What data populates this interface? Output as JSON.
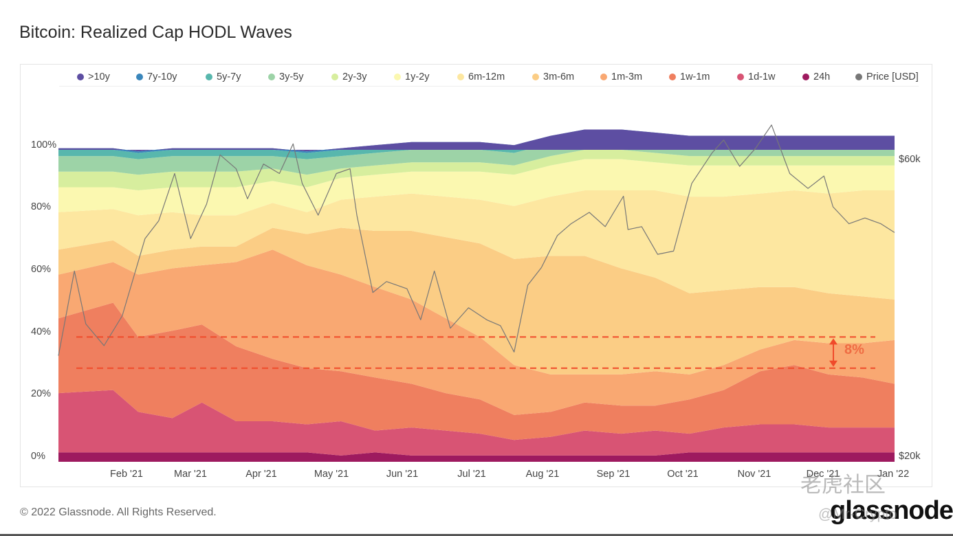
{
  "title": "Bitcoin: Realized Cap HODL Waves",
  "footer": "© 2022 Glassnode. All Rights Reserved.",
  "brand": "glassnode",
  "watermark_main": "老虎社区",
  "watermark_user": "@Mr-Crypto",
  "watermark_ghost": "glassnode",
  "annotation_label": "8%",
  "colors": {
    ">10y": "#5d4ea2",
    "7y-10y": "#3a86bb",
    "5y-7y": "#58b7ad",
    "3y-5y": "#9dd3a7",
    "2y-3y": "#d7ee9e",
    "1y-2y": "#fbf8b0",
    "6m-12m": "#fde7a0",
    "3m-6m": "#fbcd85",
    "1m-3m": "#f9a872",
    "1w-1m": "#ef7f5f",
    "1d-1w": "#d85474",
    "24h": "#9e1a5f",
    "price": "#777777",
    "annotation": "#f04a2a"
  },
  "chart_data": {
    "type": "area",
    "stacked": true,
    "title": "Bitcoin: Realized Cap HODL Waves",
    "x": [
      "2021-01-13",
      "2021-01-25",
      "2021-02-05",
      "2021-02-20",
      "2021-03-05",
      "2021-03-20",
      "2021-04-05",
      "2021-04-20",
      "2021-05-05",
      "2021-05-20",
      "2021-06-05",
      "2021-06-20",
      "2021-07-05",
      "2021-07-20",
      "2021-08-05",
      "2021-08-20",
      "2021-09-05",
      "2021-09-20",
      "2021-10-05",
      "2021-10-20",
      "2021-11-05",
      "2021-11-20",
      "2021-12-05",
      "2021-12-20",
      "2022-01-03"
    ],
    "x_tick_labels": [
      "Feb '21",
      "Mar '21",
      "Apr '21",
      "May '21",
      "Jun '21",
      "Jul '21",
      "Aug '21",
      "Sep '21",
      "Oct '21",
      "Nov '21",
      "Dec '21",
      "Jan '22"
    ],
    "y_left": {
      "range": [
        0,
        100
      ],
      "unit": "%",
      "tick_labels": [
        "0%",
        "20%",
        "40%",
        "60%",
        "80%",
        "100%"
      ]
    },
    "y_right": {
      "scale": "log",
      "range": [
        20000,
        60000
      ],
      "tick_labels": [
        "$20k",
        "$60k"
      ],
      "label": "Price [USD]"
    },
    "legend_position": "top",
    "grid": false,
    "series": [
      {
        "name": "24h",
        "values": [
          3,
          3,
          3,
          3,
          3,
          3,
          3,
          3,
          2,
          3,
          2,
          2,
          2,
          2,
          2,
          2,
          2,
          2,
          3,
          3,
          3,
          3,
          3,
          3,
          3
        ]
      },
      {
        "name": "1d-1w",
        "values": [
          19,
          20,
          13,
          11,
          16,
          10,
          10,
          9,
          11,
          7,
          9,
          8,
          7,
          5,
          6,
          8,
          7,
          8,
          6,
          8,
          9,
          9,
          8,
          8,
          8
        ]
      },
      {
        "name": "1w-1m",
        "values": [
          24,
          28,
          24,
          28,
          25,
          24,
          20,
          18,
          16,
          17,
          14,
          12,
          11,
          8,
          8,
          9,
          9,
          8,
          11,
          12,
          17,
          19,
          17,
          16,
          14
        ]
      },
      {
        "name": "1m-3m",
        "values": [
          14,
          13,
          20,
          20,
          19,
          27,
          35,
          33,
          31,
          29,
          27,
          24,
          20,
          16,
          12,
          9,
          10,
          11,
          8,
          8,
          7,
          8,
          10,
          11,
          14
        ]
      },
      {
        "name": "3m-6m",
        "values": [
          8,
          7,
          6,
          6,
          6,
          5,
          7,
          10,
          15,
          18,
          22,
          26,
          30,
          34,
          38,
          38,
          34,
          30,
          26,
          24,
          20,
          17,
          16,
          15,
          13
        ]
      },
      {
        "name": "6m-12m",
        "values": [
          12,
          10,
          13,
          12,
          10,
          10,
          8,
          7,
          9,
          11,
          12,
          13,
          14,
          17,
          19,
          21,
          25,
          28,
          31,
          30,
          30,
          31,
          32,
          34,
          35
        ]
      },
      {
        "name": "1y-2y",
        "values": [
          8,
          7,
          8,
          8,
          9,
          9,
          7,
          8,
          7,
          7,
          7,
          8,
          9,
          10,
          10,
          10,
          10,
          9,
          10,
          10,
          9,
          8,
          9,
          8,
          8
        ]
      },
      {
        "name": "2y-3y",
        "values": [
          5,
          5,
          5,
          5,
          5,
          5,
          4,
          4,
          3,
          3,
          3,
          3,
          3,
          3,
          3,
          3,
          3,
          3,
          3,
          3,
          3,
          3,
          3,
          3,
          3
        ]
      },
      {
        "name": "3y-5y",
        "values": [
          5,
          5,
          5,
          5,
          5,
          5,
          4,
          5,
          4,
          4,
          4,
          4,
          4,
          4,
          4,
          4,
          4,
          4,
          4,
          4,
          4,
          4,
          4,
          4,
          4
        ]
      },
      {
        "name": "5y-7y",
        "values": [
          2,
          2,
          2,
          2,
          2,
          2,
          2,
          2,
          2,
          2,
          2,
          2,
          2,
          2,
          2,
          2,
          2,
          2,
          2,
          2,
          2,
          2,
          2,
          2,
          2
        ]
      },
      {
        "name": "7y-10y",
        "values": [
          0.5,
          0.5,
          0.5,
          0.5,
          0.5,
          0.5,
          0.5,
          0.5,
          0.5,
          0.5,
          0.5,
          0.5,
          0.5,
          0.5,
          0.5,
          0.5,
          0.5,
          0.5,
          0.5,
          0.5,
          0.5,
          0.5,
          0.5,
          0.5,
          0.5
        ]
      },
      {
        "name": ">10y",
        "values": [
          0.5,
          0.5,
          0.5,
          0.5,
          0.5,
          0.5,
          0.5,
          0.5,
          0.5,
          0.5,
          0.5,
          0.5,
          0.5,
          0.5,
          0.5,
          0.5,
          0.5,
          0.5,
          0.5,
          0.5,
          0.5,
          0.5,
          0.5,
          0.5,
          0.5
        ]
      }
    ],
    "price": {
      "name": "Price [USD]",
      "x": [
        "2021-01-01",
        "2021-01-08",
        "2021-01-13",
        "2021-01-21",
        "2021-01-29",
        "2021-02-08",
        "2021-02-14",
        "2021-02-21",
        "2021-02-28",
        "2021-03-07",
        "2021-03-13",
        "2021-03-20",
        "2021-03-25",
        "2021-04-01",
        "2021-04-08",
        "2021-04-14",
        "2021-04-18",
        "2021-04-25",
        "2021-05-03",
        "2021-05-09",
        "2021-05-12",
        "2021-05-19",
        "2021-05-25",
        "2021-06-03",
        "2021-06-09",
        "2021-06-15",
        "2021-06-22",
        "2021-06-30",
        "2021-07-08",
        "2021-07-14",
        "2021-07-20",
        "2021-07-26",
        "2021-08-01",
        "2021-08-08",
        "2021-08-14",
        "2021-08-22",
        "2021-08-29",
        "2021-09-06",
        "2021-09-08",
        "2021-09-14",
        "2021-09-21",
        "2021-09-28",
        "2021-10-06",
        "2021-10-15",
        "2021-10-20",
        "2021-10-27",
        "2021-11-03",
        "2021-11-10",
        "2021-11-18",
        "2021-11-26",
        "2021-12-03",
        "2021-12-07",
        "2021-12-14",
        "2021-12-21",
        "2021-12-28",
        "2022-01-03"
      ],
      "values": [
        29400,
        40000,
        33000,
        30500,
        34000,
        45000,
        48000,
        57000,
        45000,
        51000,
        61000,
        58000,
        52000,
        59000,
        57000,
        63500,
        55000,
        49000,
        57000,
        58000,
        49000,
        37000,
        38500,
        37500,
        33500,
        40000,
        32500,
        35000,
        33500,
        32800,
        29800,
        38000,
        40500,
        45500,
        47500,
        49500,
        47000,
        52500,
        46500,
        47000,
        42500,
        43000,
        55000,
        61500,
        64400,
        58500,
        62500,
        68000,
        57000,
        54000,
        56500,
        50500,
        47500,
        48500,
        47500,
        46000
      ]
    },
    "annotation": {
      "label": "8%",
      "guide_values": [
        40,
        30
      ]
    }
  }
}
